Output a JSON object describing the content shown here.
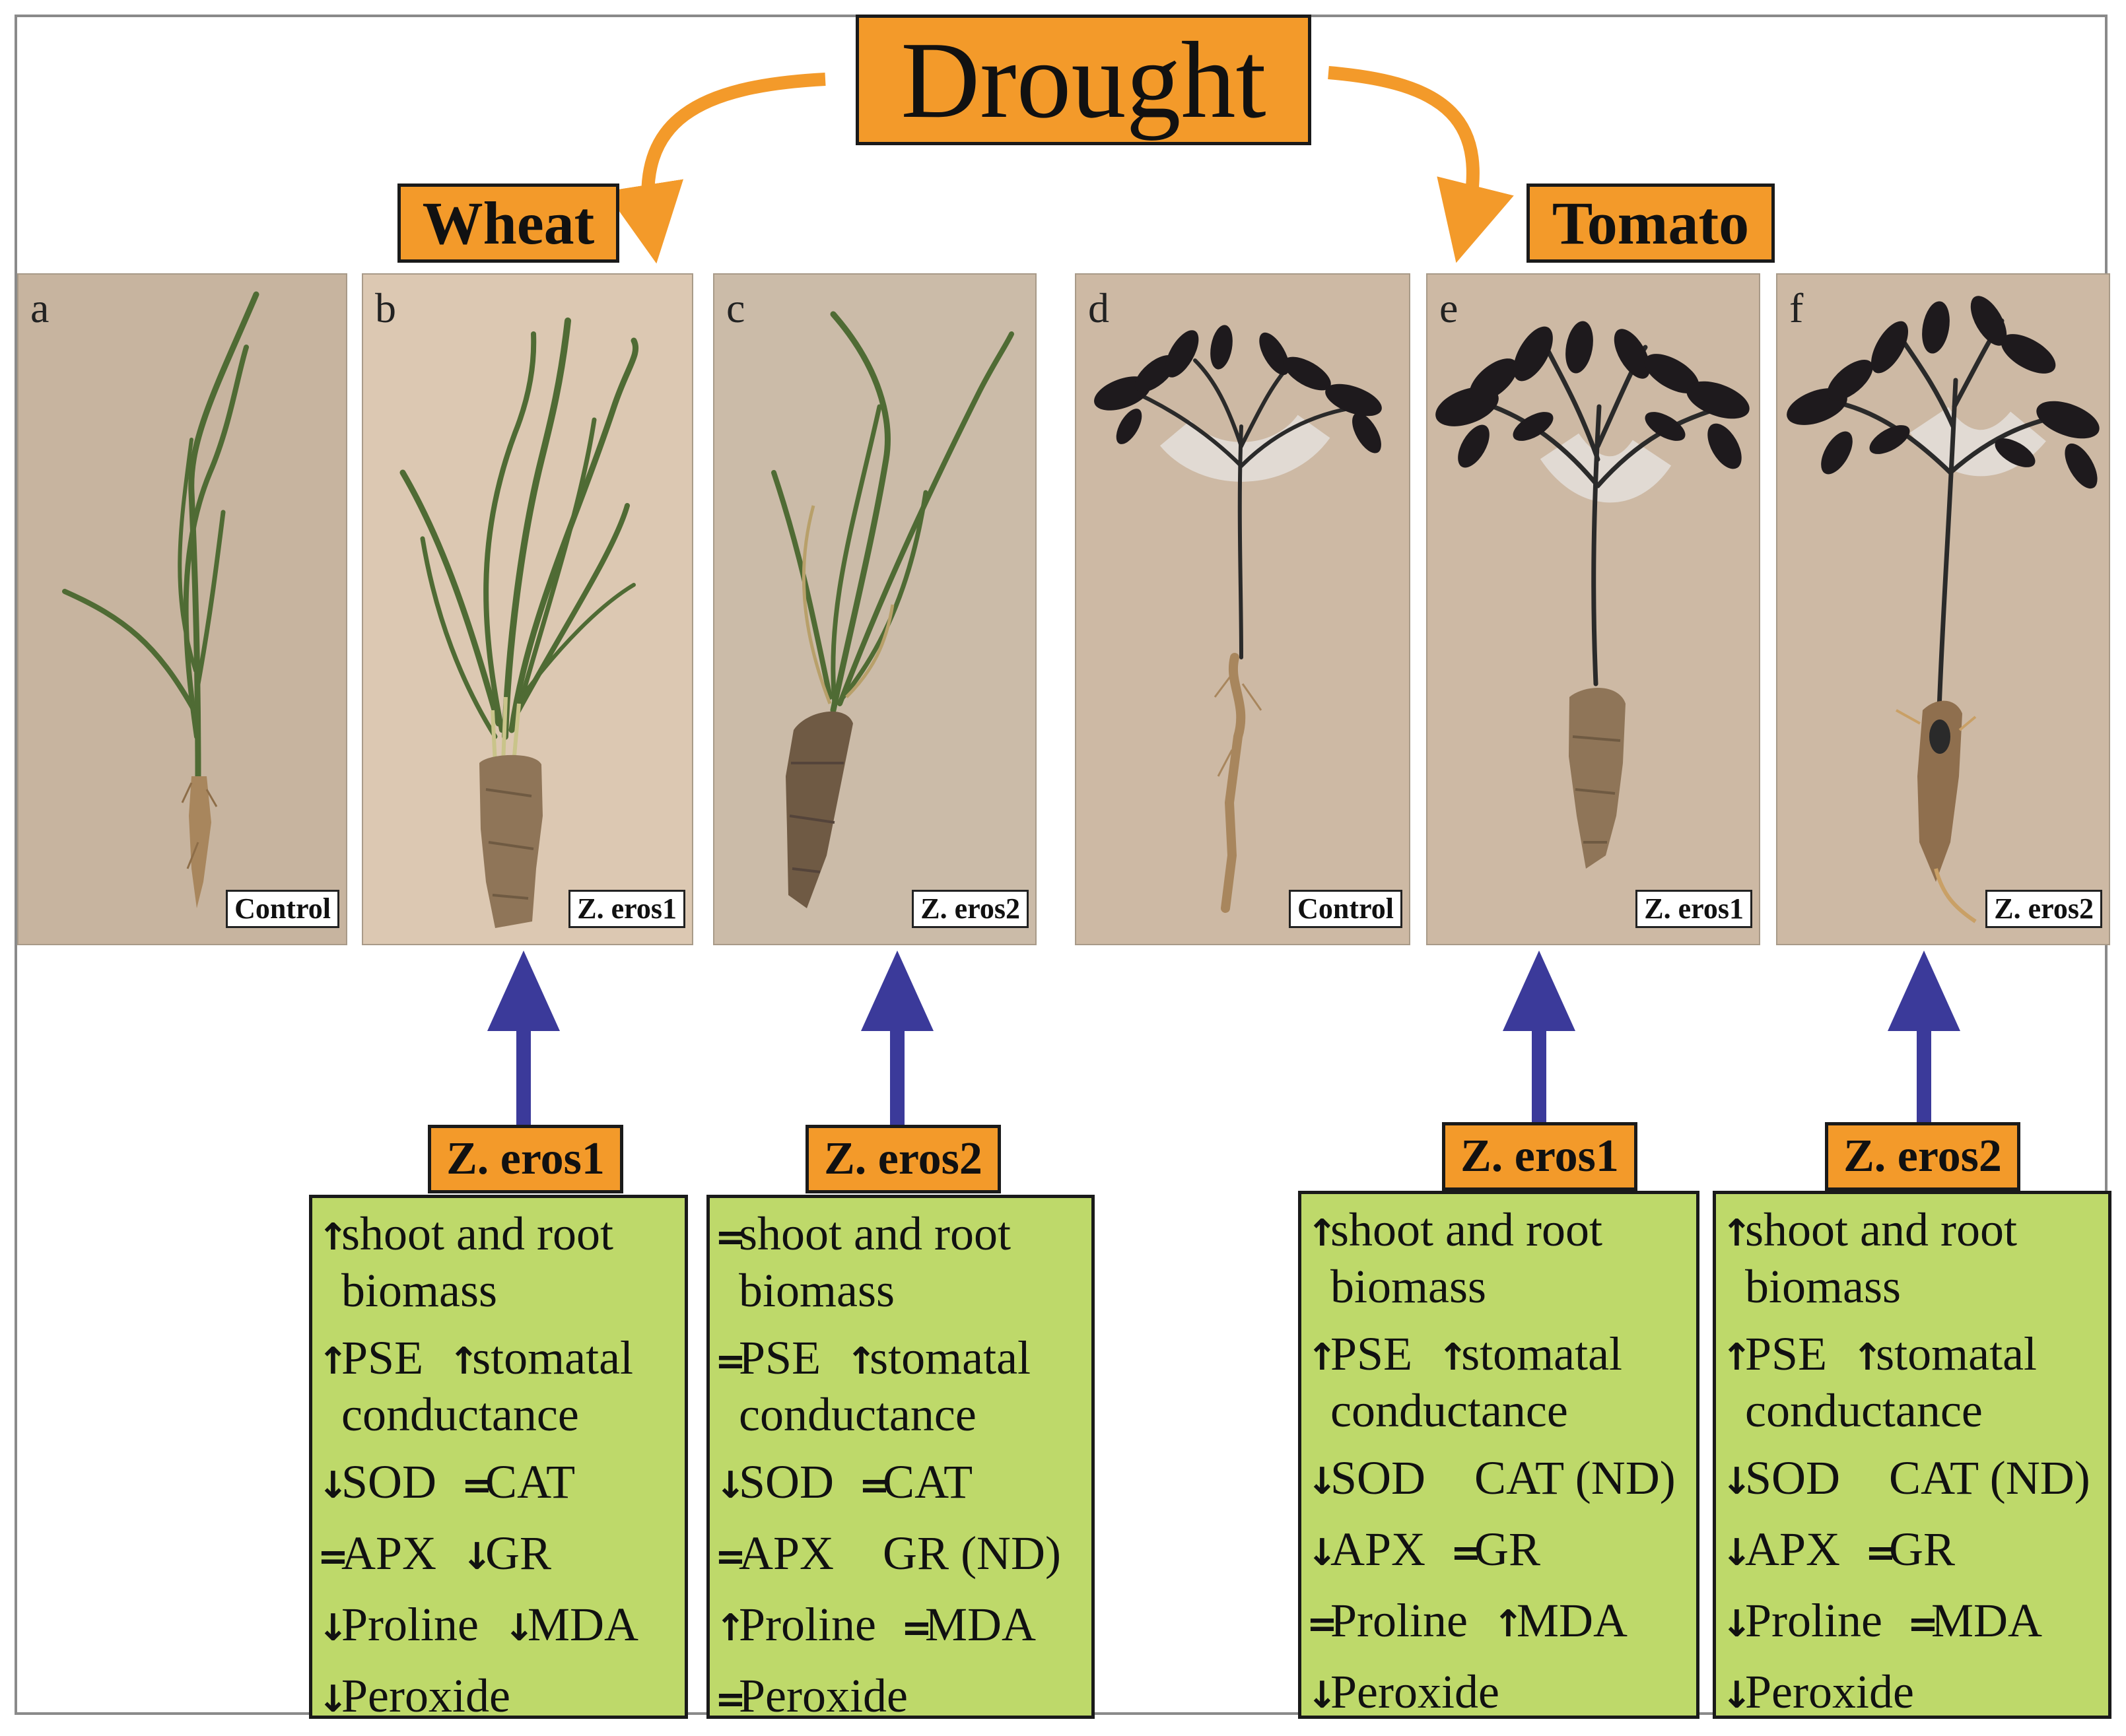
{
  "title": "Drought",
  "crops": {
    "wheat": "Wheat",
    "tomato": "Tomato"
  },
  "panels": [
    {
      "letter": "a",
      "label": "Control"
    },
    {
      "letter": "b",
      "label": "Z. eros1"
    },
    {
      "letter": "c",
      "label": "Z. eros2"
    },
    {
      "letter": "d",
      "label": "Control"
    },
    {
      "letter": "e",
      "label": "Z. eros1"
    },
    {
      "letter": "f",
      "label": "Z. eros2"
    }
  ],
  "effect_boxes": [
    {
      "treatment": "Z. eros1",
      "lines": [
        [
          {
            "s": "↑",
            "t": "shoot and root"
          }
        ],
        [
          {
            "s": "",
            "t": "biomass"
          }
        ],
        [
          {
            "s": "↑",
            "t": "PSE"
          },
          {
            "s": "↑",
            "t": "stomatal"
          }
        ],
        [
          {
            "s": "",
            "t": "conductance"
          }
        ],
        [
          {
            "s": "↓",
            "t": "SOD"
          },
          {
            "s": "=",
            "t": "CAT"
          }
        ],
        [
          {
            "s": "=",
            "t": "APX"
          },
          {
            "s": "↓",
            "t": "GR"
          }
        ],
        [
          {
            "s": "↓",
            "t": "Proline"
          },
          {
            "s": "↓",
            "t": "MDA"
          }
        ],
        [
          {
            "s": "↓",
            "t": "Peroxide"
          }
        ]
      ]
    },
    {
      "treatment": "Z. eros2",
      "lines": [
        [
          {
            "s": "=",
            "t": "shoot and root"
          }
        ],
        [
          {
            "s": "",
            "t": "biomass"
          }
        ],
        [
          {
            "s": "=",
            "t": "PSE"
          },
          {
            "s": "↑",
            "t": "stomatal"
          }
        ],
        [
          {
            "s": "",
            "t": "conductance"
          }
        ],
        [
          {
            "s": "↓",
            "t": "SOD"
          },
          {
            "s": "=",
            "t": "CAT"
          }
        ],
        [
          {
            "s": "=",
            "t": "APX"
          },
          {
            "s": "",
            "t": "GR (ND)"
          }
        ],
        [
          {
            "s": "↑",
            "t": "Proline"
          },
          {
            "s": "=",
            "t": "MDA"
          }
        ],
        [
          {
            "s": "=",
            "t": "Peroxide"
          }
        ]
      ]
    },
    {
      "treatment": "Z. eros1",
      "lines": [
        [
          {
            "s": "↑",
            "t": "shoot and root"
          }
        ],
        [
          {
            "s": "",
            "t": "biomass"
          }
        ],
        [
          {
            "s": "↑",
            "t": "PSE"
          },
          {
            "s": "↑",
            "t": "stomatal"
          }
        ],
        [
          {
            "s": "",
            "t": "conductance"
          }
        ],
        [
          {
            "s": "↓",
            "t": "SOD"
          },
          {
            "s": "",
            "t": "CAT (ND)"
          }
        ],
        [
          {
            "s": "↓",
            "t": "APX"
          },
          {
            "s": "=",
            "t": "GR"
          }
        ],
        [
          {
            "s": "=",
            "t": "Proline"
          },
          {
            "s": "↑",
            "t": "MDA"
          }
        ],
        [
          {
            "s": "↓",
            "t": "Peroxide"
          }
        ]
      ]
    },
    {
      "treatment": "Z. eros2",
      "lines": [
        [
          {
            "s": "↑",
            "t": "shoot and root"
          }
        ],
        [
          {
            "s": "",
            "t": "biomass"
          }
        ],
        [
          {
            "s": "↑",
            "t": "PSE"
          },
          {
            "s": "↑",
            "t": "stomatal"
          }
        ],
        [
          {
            "s": "",
            "t": "conductance"
          }
        ],
        [
          {
            "s": "↓",
            "t": "SOD"
          },
          {
            "s": "",
            "t": "CAT (ND)"
          }
        ],
        [
          {
            "s": "↓",
            "t": "APX"
          },
          {
            "s": "=",
            "t": "GR"
          }
        ],
        [
          {
            "s": "↓",
            "t": "Proline"
          },
          {
            "s": "=",
            "t": "MDA"
          }
        ],
        [
          {
            "s": "↓",
            "t": "Peroxide"
          }
        ]
      ]
    }
  ],
  "colors": {
    "orange": "#f39a2a",
    "green_box": "#bed96a",
    "blue_arrow": "#3b3a9a",
    "panel_bg_a": "#c7b49f",
    "panel_bg_b": "#dcc8b2",
    "panel_bg_c": "#cbbba8",
    "panel_bg_tomato": "#cdb9a4",
    "wheat_leaf": "#4f6b34",
    "tomato_leaf": "#1e1a1d",
    "root": "#a8865d"
  },
  "icons": {
    "process_arrow": "orange-curved-arrow-icon",
    "treatment_arrow": "blue-up-arrow-icon"
  }
}
